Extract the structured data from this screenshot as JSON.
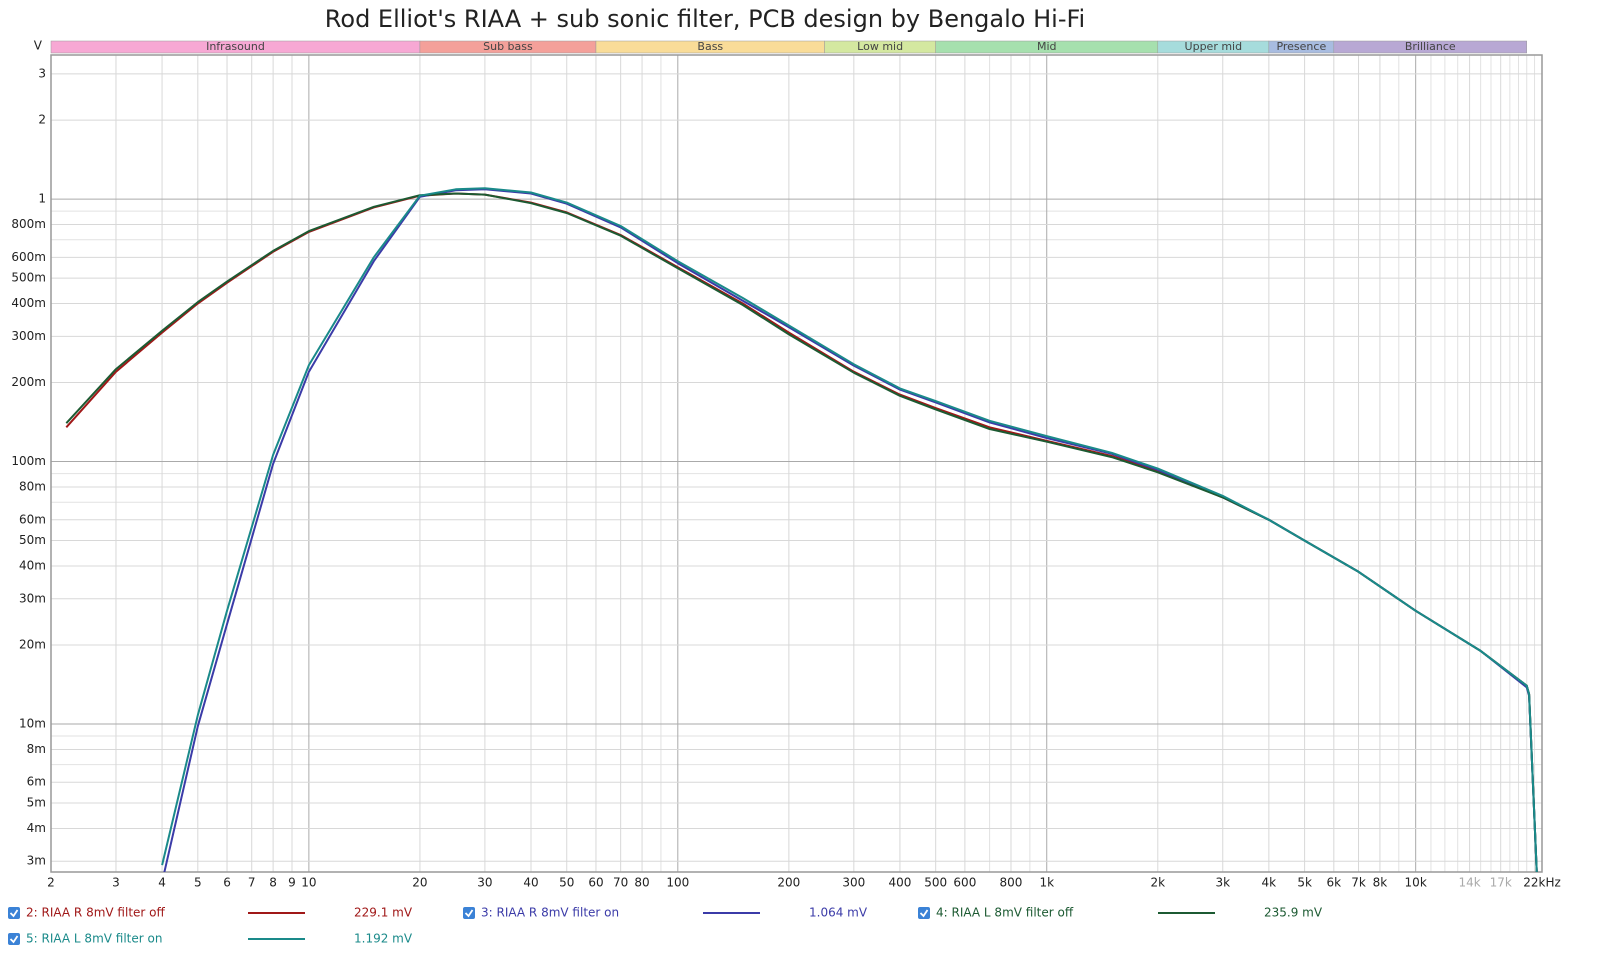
{
  "chart_data": {
    "type": "line",
    "title": "Rod Elliot's RIAA + sub sonic filter, PCB design by Bengalo Hi-Fi",
    "y_label": "V",
    "xscale": "log",
    "yscale": "log",
    "grid": true,
    "xlim": [
      2,
      22000
    ],
    "ylim": [
      0.00273,
      3.54
    ],
    "xticks": [
      2,
      3,
      4,
      5,
      6,
      7,
      8,
      9,
      10,
      20,
      30,
      40,
      50,
      60,
      70,
      80,
      100,
      200,
      300,
      400,
      500,
      600,
      800,
      {
        "value": 1000,
        "label": "1k"
      },
      {
        "value": 2000,
        "label": "2k"
      },
      {
        "value": 3000,
        "label": "3k"
      },
      {
        "value": 4000,
        "label": "4k"
      },
      {
        "value": 5000,
        "label": "5k"
      },
      {
        "value": 6000,
        "label": "6k"
      },
      {
        "value": 7000,
        "label": "7k"
      },
      {
        "value": 8000,
        "label": "8k"
      },
      {
        "value": 10000,
        "label": "10k"
      },
      {
        "value": 14000,
        "label": "14k",
        "color": "#aaaaaa"
      },
      {
        "value": 17000,
        "label": "17k",
        "color": "#aaaaaa"
      },
      {
        "value": 22000,
        "label": "22kHz"
      }
    ],
    "xminor": [
      90,
      700,
      900,
      9000,
      11000,
      12000,
      13000,
      15000,
      16000,
      18000,
      19000,
      20000,
      21000
    ],
    "yticks": [
      {
        "value": 0.003,
        "label": "3m"
      },
      {
        "value": 0.004,
        "label": "4m"
      },
      {
        "value": 0.005,
        "label": "5m"
      },
      {
        "value": 0.006,
        "label": "6m"
      },
      {
        "value": 0.008,
        "label": "8m"
      },
      {
        "value": 0.01,
        "label": "10m"
      },
      {
        "value": 0.02,
        "label": "20m"
      },
      {
        "value": 0.03,
        "label": "30m"
      },
      {
        "value": 0.04,
        "label": "40m"
      },
      {
        "value": 0.05,
        "label": "50m"
      },
      {
        "value": 0.06,
        "label": "60m"
      },
      {
        "value": 0.08,
        "label": "80m"
      },
      {
        "value": 0.1,
        "label": "100m"
      },
      {
        "value": 0.2,
        "label": "200m"
      },
      {
        "value": 0.3,
        "label": "300m"
      },
      {
        "value": 0.4,
        "label": "400m"
      },
      {
        "value": 0.5,
        "label": "500m"
      },
      {
        "value": 0.6,
        "label": "600m"
      },
      {
        "value": 0.8,
        "label": "800m"
      },
      1,
      2,
      3
    ],
    "yminor": [
      0.007,
      0.009,
      0.07,
      0.09,
      0.7,
      0.9
    ],
    "bands": [
      {
        "label": "Infrasound",
        "from": 2,
        "to": 20,
        "color": "#f7a8d4"
      },
      {
        "label": "Sub bass",
        "from": 20,
        "to": 60,
        "color": "#f4a09a"
      },
      {
        "label": "Bass",
        "from": 60,
        "to": 250,
        "color": "#f9dc98"
      },
      {
        "label": "Low mid",
        "from": 250,
        "to": 500,
        "color": "#d4e8a0"
      },
      {
        "label": "Mid",
        "from": 500,
        "to": 2000,
        "color": "#a6e0ae"
      },
      {
        "label": "Upper mid",
        "from": 2000,
        "to": 4000,
        "color": "#a6dcdc"
      },
      {
        "label": "Presence",
        "from": 4000,
        "to": 6000,
        "color": "#a8bce0"
      },
      {
        "label": "Brilliance",
        "from": 6000,
        "to": 20000,
        "color": "#b8a8d4"
      }
    ],
    "x": [
      2.2,
      3,
      4,
      5,
      6,
      8,
      10,
      15,
      20,
      25,
      30,
      40,
      50,
      70,
      100,
      150,
      200,
      300,
      400,
      500,
      700,
      1000,
      1500,
      2000,
      3000,
      4000,
      5000,
      7000,
      10000,
      15000,
      20000,
      20300,
      21300
    ],
    "series": [
      {
        "name": "2: RIAA R 8mV filter off",
        "color": "#a01818",
        "reading": "229.1 mV",
        "values": [
          0.135,
          0.22,
          0.31,
          0.4,
          0.48,
          0.63,
          0.75,
          0.93,
          1.03,
          1.05,
          1.04,
          0.97,
          0.89,
          0.73,
          0.55,
          0.4,
          0.31,
          0.22,
          0.18,
          0.16,
          0.135,
          0.12,
          0.105,
          0.092,
          0.073,
          0.06,
          0.05,
          0.038,
          0.027,
          0.019,
          0.014,
          0.013,
          0.0027
        ]
      },
      {
        "name": "3: RIAA R 8mV filter on",
        "color": "#3b3ba8",
        "reading": "1.064 mV",
        "values": [
          null,
          null,
          0.0025,
          0.0098,
          0.024,
          0.098,
          0.22,
          0.58,
          1.02,
          1.08,
          1.09,
          1.05,
          0.96,
          0.78,
          0.57,
          0.41,
          0.325,
          0.232,
          0.188,
          0.168,
          0.141,
          0.123,
          0.107,
          0.093,
          0.073,
          0.06,
          0.05,
          0.038,
          0.027,
          0.019,
          0.0138,
          0.0128,
          0.0027
        ]
      },
      {
        "name": "4: RIAA L 8mV filter off",
        "color": "#1c5a32",
        "reading": "235.9 mV",
        "values": [
          0.14,
          0.225,
          0.315,
          0.405,
          0.485,
          0.635,
          0.755,
          0.935,
          1.035,
          1.05,
          1.04,
          0.965,
          0.885,
          0.725,
          0.545,
          0.395,
          0.305,
          0.218,
          0.178,
          0.158,
          0.133,
          0.119,
          0.104,
          0.091,
          0.073,
          0.06,
          0.05,
          0.038,
          0.027,
          0.019,
          0.014,
          0.013,
          0.0027
        ]
      },
      {
        "name": "5: RIAA L 8mV filter on",
        "color": "#1a8a8a",
        "reading": "1.192 mV",
        "values": [
          null,
          null,
          0.0029,
          0.0108,
          0.027,
          0.106,
          0.233,
          0.6,
          1.03,
          1.09,
          1.1,
          1.06,
          0.97,
          0.79,
          0.58,
          0.42,
          0.33,
          0.235,
          0.19,
          0.17,
          0.143,
          0.125,
          0.108,
          0.094,
          0.074,
          0.06,
          0.05,
          0.038,
          0.027,
          0.019,
          0.014,
          0.013,
          0.0027
        ]
      }
    ]
  }
}
